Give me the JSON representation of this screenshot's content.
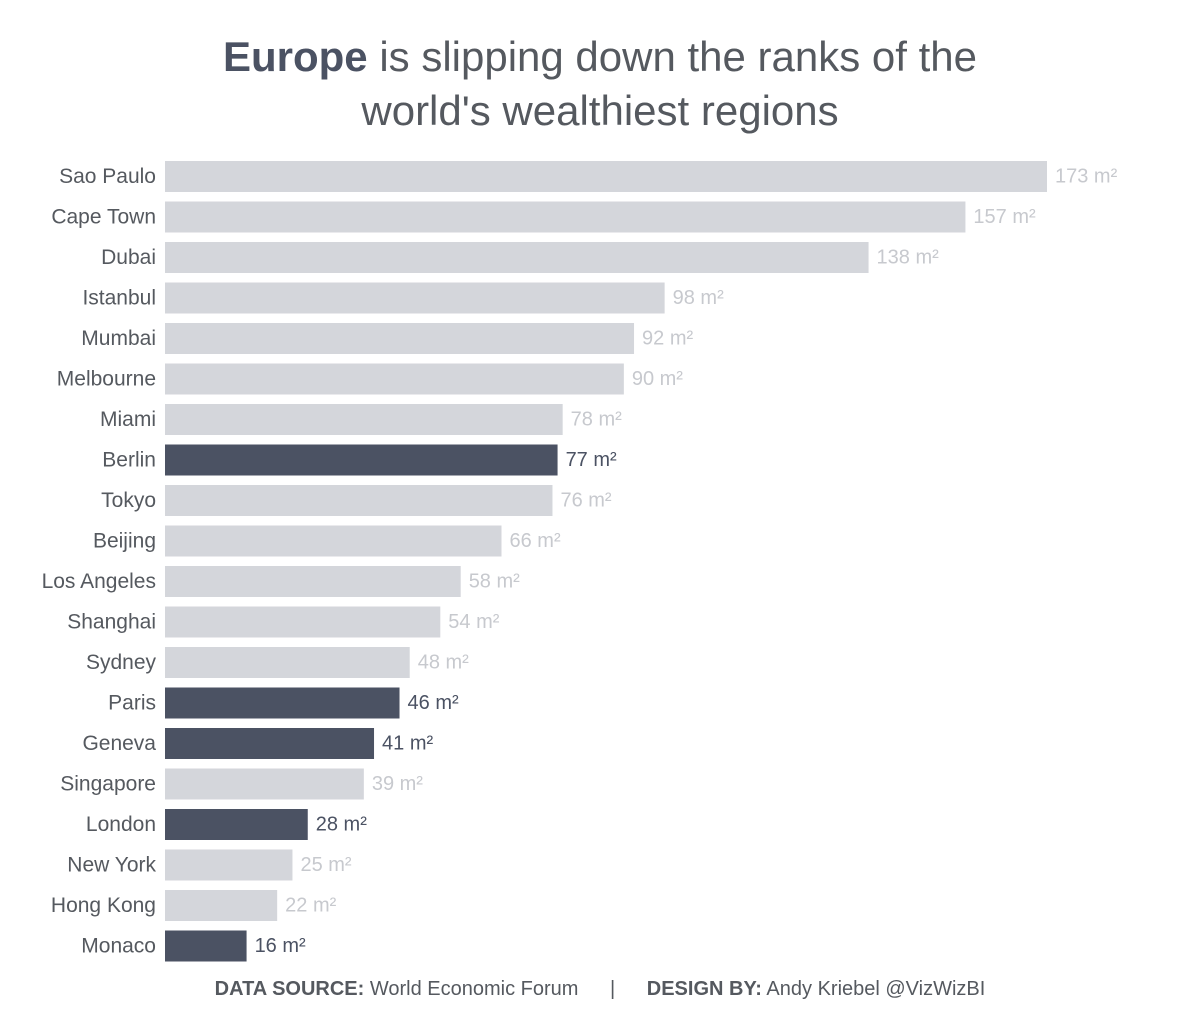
{
  "title": {
    "highlight": "Europe",
    "rest_line1": " is slipping down the ranks of the",
    "line2": "world's wealthiest regions"
  },
  "chart_data": {
    "type": "bar",
    "orientation": "horizontal",
    "unit": "m²",
    "categories": [
      "Sao Paulo",
      "Cape Town",
      "Dubai",
      "Istanbul",
      "Mumbai",
      "Melbourne",
      "Miami",
      "Berlin",
      "Tokyo",
      "Beijing",
      "Los Angeles",
      "Shanghai",
      "Sydney",
      "Paris",
      "Geneva",
      "Singapore",
      "London",
      "New York",
      "Hong Kong",
      "Monaco"
    ],
    "values": [
      173,
      157,
      138,
      98,
      92,
      90,
      78,
      77,
      76,
      66,
      58,
      54,
      48,
      46,
      41,
      39,
      28,
      25,
      22,
      16
    ],
    "highlighted": [
      "Berlin",
      "Paris",
      "Geneva",
      "London",
      "Monaco"
    ],
    "data_labels": [
      "173 m²",
      "157 m²",
      "138 m²",
      "98 m²",
      "92 m²",
      "90 m²",
      "78 m²",
      "77 m²",
      "76 m²",
      "66 m²",
      "58 m²",
      "54 m²",
      "48 m²",
      "46 m²",
      "41 m²",
      "39 m²",
      "28 m²",
      "25 m²",
      "22 m²",
      "16 m²"
    ],
    "xlim": [
      0,
      173
    ],
    "grid": false,
    "colors": {
      "default_bar": "#d4d6db",
      "highlight_bar": "#4b5263",
      "default_label": "#c7c9ce",
      "highlight_label": "#4b5263",
      "category_label": "#55595f"
    }
  },
  "footer": {
    "source_label": "DATA SOURCE:",
    "source_value": "World Economic Forum",
    "separator": "|",
    "design_label": "DESIGN BY:",
    "design_value": "Andy Kriebel @VizWizBI"
  }
}
